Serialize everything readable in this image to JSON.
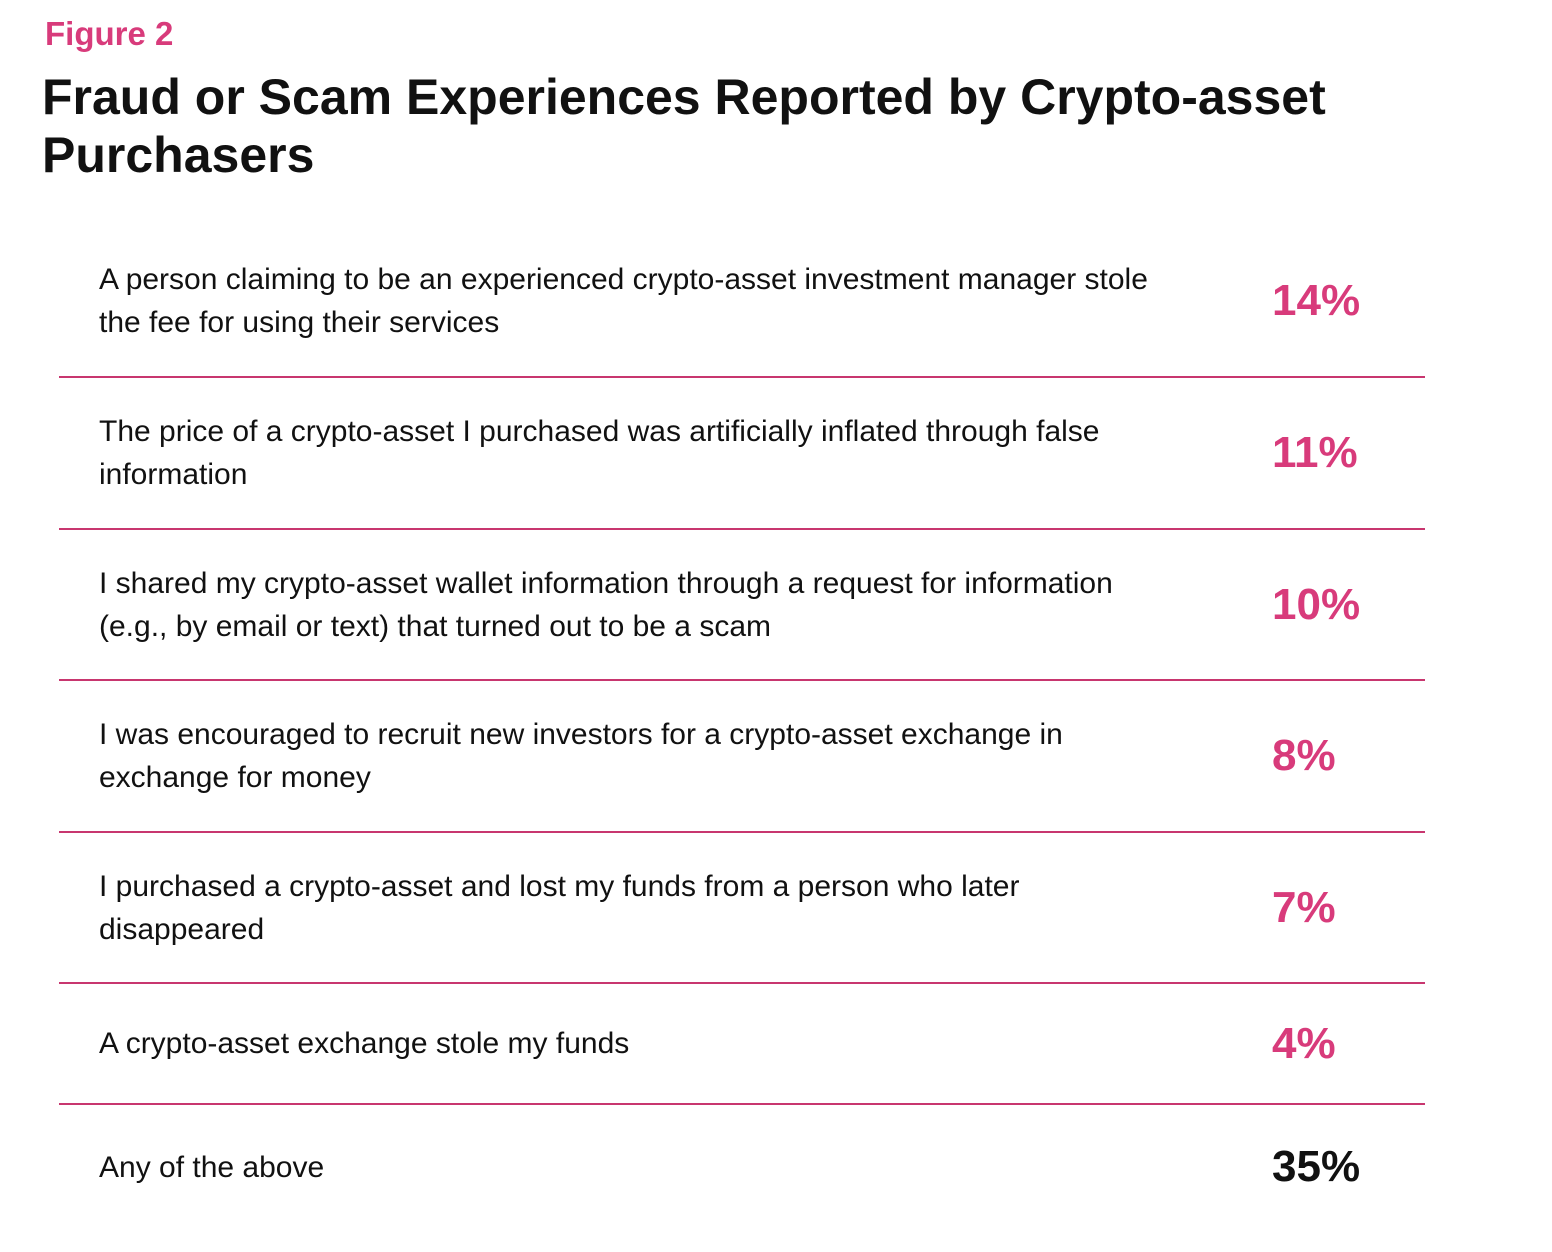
{
  "figure_label": "Figure 2",
  "title": "Fraud or Scam Experiences Reported by Crypto-asset Purchasers",
  "colors": {
    "accent": "#d83b7b",
    "rule": "#c8366f",
    "text": "#111111"
  },
  "chart_data": {
    "type": "table",
    "title": "Fraud or Scam Experiences Reported by Crypto-asset Purchasers",
    "rows": [
      {
        "label": "A person claiming to be an experienced crypto-asset investment manager stole the fee for using their services",
        "value": "14%"
      },
      {
        "label": "The price of a crypto-asset I purchased was artificially inflated through false information",
        "value": "11%"
      },
      {
        "label": "I shared my crypto-asset wallet information through a request for information (e.g., by email or text) that turned out to be a scam",
        "value": "10%"
      },
      {
        "label": "I was encouraged to recruit new investors for a crypto-asset exchange in exchange for money",
        "value": "8%"
      },
      {
        "label": "I purchased a crypto-asset and lost my funds from a person who later disappeared",
        "value": "7%"
      },
      {
        "label": "A crypto-asset exchange stole my funds",
        "value": "4%"
      },
      {
        "label": "Any of the above",
        "value": "35%"
      }
    ]
  }
}
